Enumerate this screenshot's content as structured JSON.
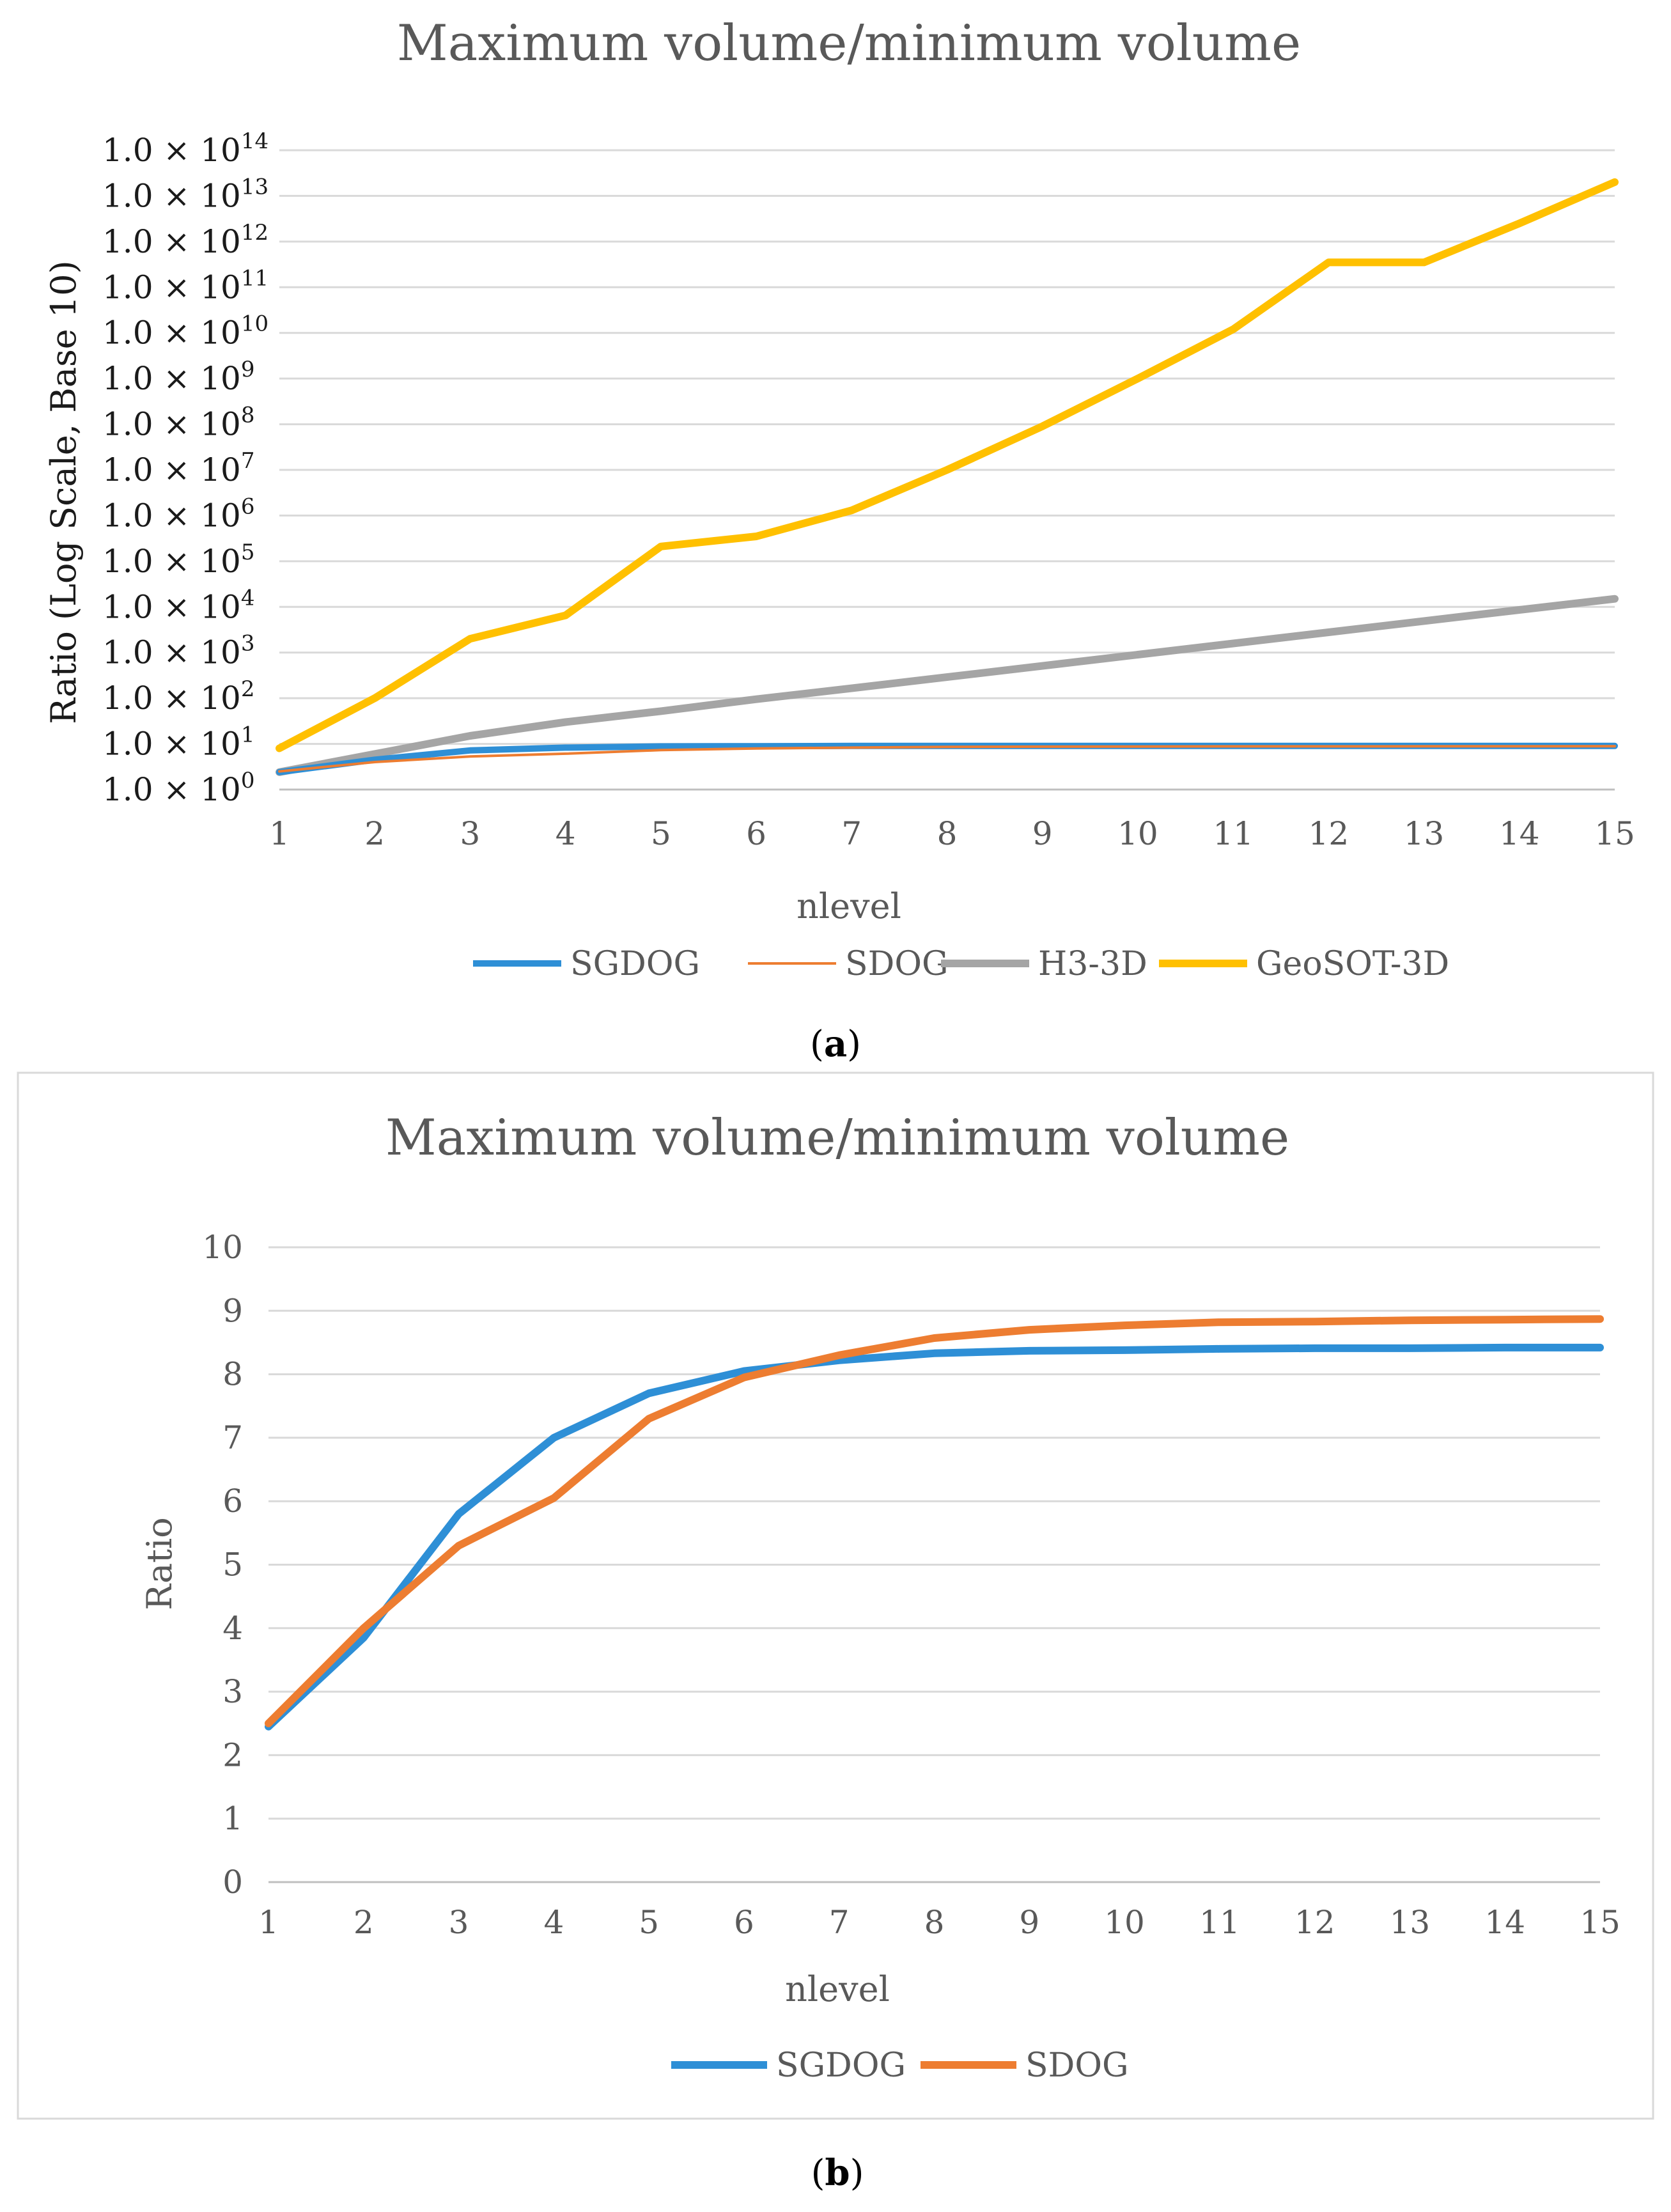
{
  "chart_data": [
    {
      "type": "line",
      "panel": "a",
      "title": "Maximum volume/minimum volume",
      "xlabel": "nlevel",
      "ylabel": "Ratio (Log Scale, Base 10)",
      "yscale": "log10",
      "categories": [
        1,
        2,
        3,
        4,
        5,
        6,
        7,
        8,
        9,
        10,
        11,
        12,
        13,
        14,
        15
      ],
      "ylim": [
        1,
        100000000000000
      ],
      "ytick_prefix": "1.0 × 10",
      "ytick_exponents": [
        "0",
        "1",
        "2",
        "3",
        "4",
        "5",
        "6",
        "7",
        "8",
        "9",
        "10",
        "11",
        "12",
        "13",
        "14"
      ],
      "series": [
        {
          "name": "SGDOG",
          "color": "#2e8fd6",
          "width": 10,
          "values": [
            2.4,
            4.5,
            7.2,
            8.3,
            8.8,
            8.9,
            9.0,
            9.0,
            9.0,
            9.0,
            9.0,
            9.0,
            9.0,
            9.0,
            9.0
          ]
        },
        {
          "name": "SDOG",
          "color": "#ed7d31",
          "width": 4,
          "values": [
            2.5,
            4.0,
            5.3,
            6.1,
            7.3,
            7.95,
            8.3,
            8.6,
            8.7,
            8.75,
            8.8,
            8.82,
            8.84,
            8.85,
            8.86
          ]
        },
        {
          "name": "H3-3D",
          "color": "#a5a5a5",
          "width": 12,
          "values": [
            2.4,
            6.0,
            15.0,
            30.0,
            52.0,
            95.0,
            165.0,
            290.0,
            510.0,
            900.0,
            1580.0,
            2780.0,
            4900.0,
            8600.0,
            15000.0
          ]
        },
        {
          "name": "GeoSOT-3D",
          "color": "#ffc000",
          "width": 12,
          "values": [
            8.0,
            100.0,
            2000.0,
            6500.0,
            210000.0,
            350000.0,
            1300000.0,
            10000000.0,
            90000000.0,
            1000000000.0,
            12000000000.0,
            350000000000.0,
            350000000000.0,
            2500000000000.0,
            20000000000000.0
          ]
        }
      ],
      "caption": "a"
    },
    {
      "type": "line",
      "panel": "b",
      "title": "Maximum volume/minimum volume",
      "xlabel": "nlevel",
      "ylabel": "Ratio",
      "categories": [
        1,
        2,
        3,
        4,
        5,
        6,
        7,
        8,
        9,
        10,
        11,
        12,
        13,
        14,
        15
      ],
      "ylim": [
        0,
        10
      ],
      "yticks": [
        0,
        1,
        2,
        3,
        4,
        5,
        6,
        7,
        8,
        9,
        10
      ],
      "series": [
        {
          "name": "SGDOG",
          "color": "#2e8fd6",
          "width": 12,
          "values": [
            2.45,
            3.85,
            5.8,
            7.0,
            7.7,
            8.05,
            8.22,
            8.33,
            8.37,
            8.38,
            8.4,
            8.41,
            8.41,
            8.42,
            8.42
          ]
        },
        {
          "name": "SDOG",
          "color": "#ed7d31",
          "width": 12,
          "values": [
            2.5,
            4.0,
            5.3,
            6.05,
            7.3,
            7.95,
            8.3,
            8.57,
            8.7,
            8.77,
            8.82,
            8.83,
            8.85,
            8.86,
            8.87
          ]
        }
      ],
      "caption": "b"
    }
  ]
}
